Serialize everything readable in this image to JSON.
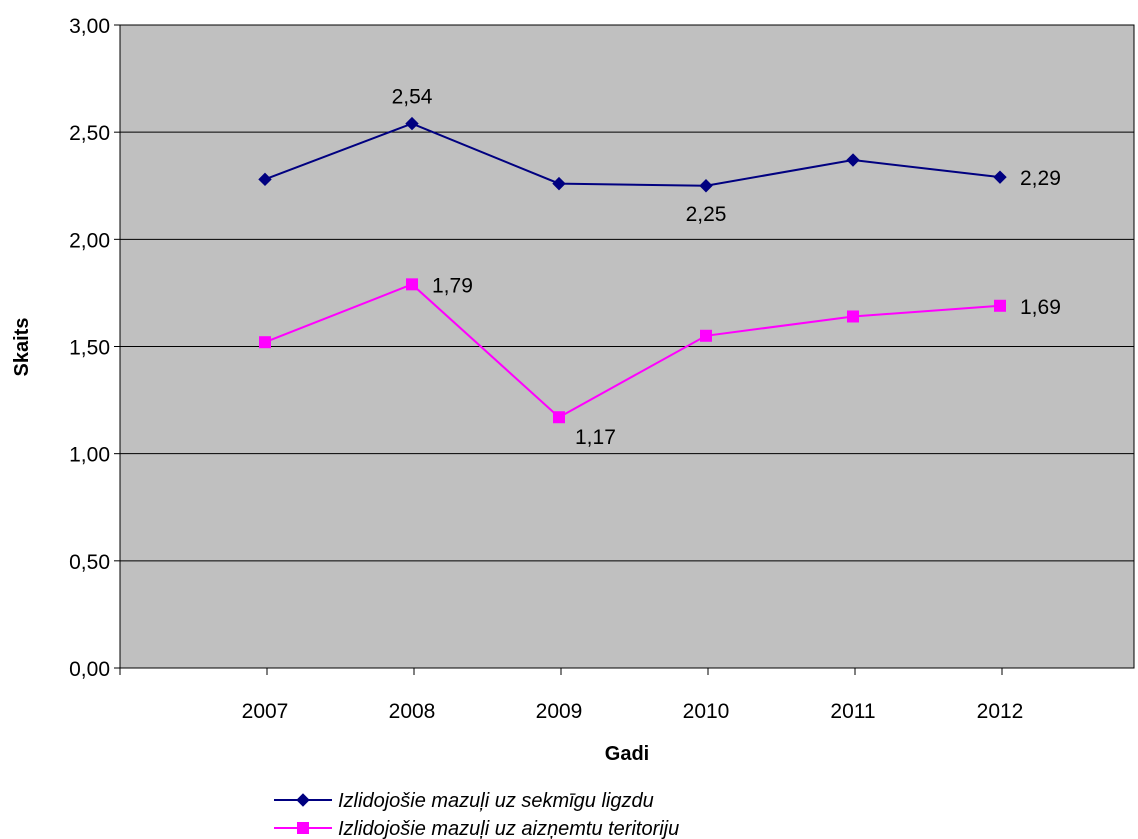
{
  "chart_data": {
    "type": "line",
    "title": "",
    "xlabel": "Gadi",
    "ylabel": "Skaits",
    "categories": [
      "2007",
      "2008",
      "2009",
      "2010",
      "2011",
      "2012"
    ],
    "ylim": [
      0,
      3
    ],
    "yticks": [
      "0,00",
      "0,50",
      "1,00",
      "1,50",
      "2,00",
      "2,50",
      "3,00"
    ],
    "grid": true,
    "legend_position": "bottom",
    "plot_background": "#c0c0c0",
    "series": [
      {
        "name": "Izlidojošie mazuļi uz sekmīgu ligzdu",
        "values": [
          2.28,
          2.54,
          2.26,
          2.25,
          2.37,
          2.29
        ],
        "data_labels": [
          null,
          "2,54",
          null,
          "2,25",
          null,
          "2,29"
        ],
        "color": "#000080",
        "marker": "diamond"
      },
      {
        "name": "Izlidojošie mazuļi uz aizņemtu teritoriju",
        "values": [
          1.52,
          1.79,
          1.17,
          1.55,
          1.64,
          1.69
        ],
        "data_labels": [
          null,
          "1,79",
          "1,17",
          null,
          null,
          "1,69"
        ],
        "color": "#ff00ff",
        "marker": "square"
      }
    ]
  }
}
